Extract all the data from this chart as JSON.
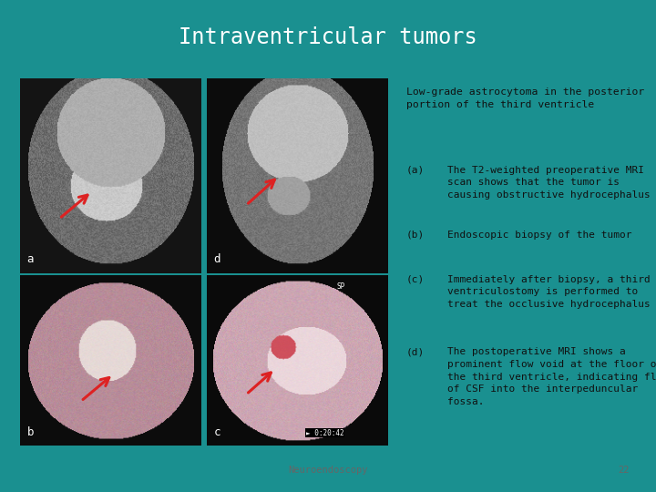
{
  "title": "Intraventricular tumors",
  "title_bg": "#0d2b35",
  "title_color": "#ffffff",
  "slide_bg": "#1a9090",
  "content_bg": "#dcdcdc",
  "heading_text": "Low-grade astrocytoma in the posterior\nportion of the third ventricle",
  "items": [
    {
      "label": "(a)",
      "text": "The T2-weighted preoperative MRI\nscan shows that the tumor is\ncausing obstructive hydrocephalus"
    },
    {
      "label": "(b)",
      "text": "Endoscopic biopsy of the tumor"
    },
    {
      "label": "(c)",
      "text": "Immediately after biopsy, a third\nventriculostomy is performed to\ntreat the occlusive hydrocephalus"
    },
    {
      "label": "(d)",
      "text": "The postoperative MRI shows a\nprominent flow void at the floor of\nthe third ventricle, indicating flow\nof CSF into the interpeduncular\nfossa."
    }
  ],
  "footer_text": "Neuroendoscopy",
  "footer_page": "22",
  "footer_color": "#666666",
  "img_a_bg": "#888888",
  "img_d_bg": "#777777",
  "img_b_bg": "#c9a0a0",
  "img_c_bg": "#b09090",
  "label_color": "#ffffff",
  "arrow_color": "#dd2222"
}
